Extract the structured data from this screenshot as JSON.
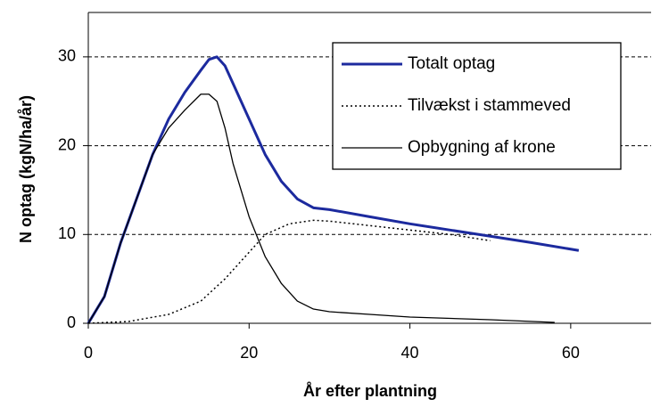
{
  "chart_data": {
    "type": "line",
    "xlabel": "År efter plantning",
    "ylabel": "N optag (kgN/ha/år)",
    "xlim": [
      0,
      70
    ],
    "xticks": [
      0,
      20,
      40,
      60
    ],
    "ylim": [
      0,
      35
    ],
    "yticks": [
      0,
      10,
      20,
      30
    ],
    "grid": true,
    "legend": "upper right",
    "series": [
      {
        "name": "Totalt optag",
        "color": "#1c2a9e",
        "style": "solid",
        "width": 3,
        "x": [
          0,
          2,
          4,
          6,
          8,
          10,
          12,
          14,
          15,
          16,
          17,
          18,
          20,
          22,
          24,
          26,
          28,
          30,
          35,
          40,
          45,
          50,
          55,
          61
        ],
        "values": [
          0,
          3,
          9,
          14,
          19,
          23,
          26,
          28.5,
          29.7,
          30,
          29,
          27,
          23,
          19,
          16,
          14,
          13,
          12.8,
          12,
          11.2,
          10.5,
          9.8,
          9.1,
          8.2
        ]
      },
      {
        "name": "Tilvækst i stammeved",
        "color": "#000000",
        "style": "dotted",
        "width": 1.5,
        "x": [
          0,
          5,
          10,
          14,
          17,
          20,
          22,
          25,
          28,
          30,
          35,
          40,
          45,
          50
        ],
        "values": [
          0,
          0.2,
          1,
          2.5,
          5,
          8,
          10,
          11.2,
          11.6,
          11.5,
          11,
          10.5,
          10,
          9.3
        ]
      },
      {
        "name": "Opbygning af krone",
        "color": "#000000",
        "style": "solid",
        "width": 1.3,
        "x": [
          0,
          2,
          4,
          6,
          8,
          10,
          12,
          14,
          15,
          16,
          17,
          18,
          20,
          22,
          24,
          26,
          28,
          30,
          35,
          40,
          50,
          58
        ],
        "values": [
          0,
          3,
          9,
          14,
          19,
          22,
          24,
          25.8,
          25.8,
          25,
          22,
          18,
          12,
          7.5,
          4.5,
          2.5,
          1.6,
          1.3,
          1,
          0.7,
          0.4,
          0.1
        ]
      }
    ]
  }
}
